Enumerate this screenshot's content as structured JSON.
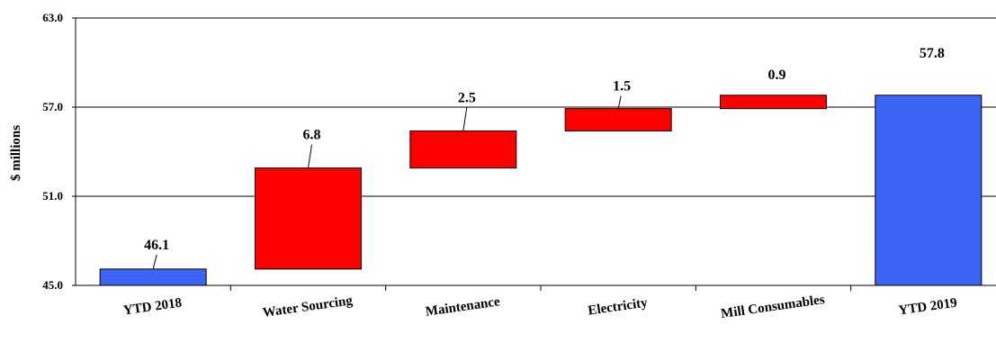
{
  "chart_data": {
    "type": "bar",
    "subtype": "waterfall",
    "title": "",
    "xlabel": "",
    "ylabel": "$ millions",
    "ylim": [
      45.0,
      63.0
    ],
    "yticks": [
      "45.0",
      "51.0",
      "57.0",
      "63.0"
    ],
    "grid": true,
    "legend": "none",
    "categories": [
      "YTD 2018",
      "Water Sourcing",
      "Maintenance",
      "Electricity",
      "Mill Consumables",
      "YTD 2019"
    ],
    "bars": [
      {
        "category": "YTD 2018",
        "kind": "total",
        "start": 45.0,
        "end": 46.1,
        "label": "46.1"
      },
      {
        "category": "Water Sourcing",
        "kind": "increase",
        "start": 46.1,
        "end": 52.9,
        "label": "6.8"
      },
      {
        "category": "Maintenance",
        "kind": "increase",
        "start": 52.9,
        "end": 55.4,
        "label": "2.5"
      },
      {
        "category": "Electricity",
        "kind": "increase",
        "start": 55.4,
        "end": 56.9,
        "label": "1.5"
      },
      {
        "category": "Mill Consumables",
        "kind": "increase",
        "start": 56.9,
        "end": 57.8,
        "label": "0.9"
      },
      {
        "category": "YTD 2019",
        "kind": "total",
        "start": 45.0,
        "end": 57.8,
        "label": "57.8"
      }
    ],
    "colors": {
      "total": "#3b64f5",
      "increase": "#ff0000",
      "outline": "#000000"
    }
  }
}
